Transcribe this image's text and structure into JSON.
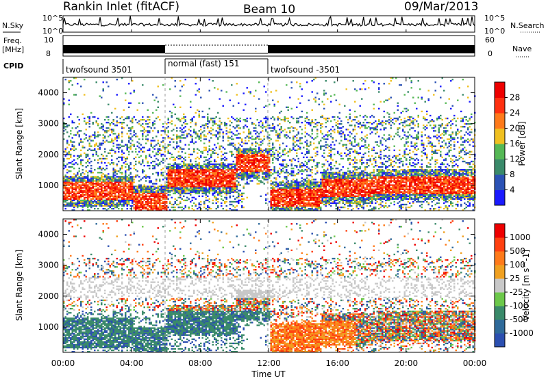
{
  "header": {
    "station": "Rankin Inlet (fitACF)",
    "beam": "Beam 10",
    "date": "09/Mar/2013"
  },
  "top_panels": {
    "nsky_label": "N.Sky",
    "nsky_ticks": [
      "10^5",
      "10^0"
    ],
    "nsearch_label": "N.Search",
    "nsearch_ticks": [
      "10^5",
      "10^0"
    ],
    "freq_label": "Freq.",
    "freq_unit": "[MHz]",
    "freq_ticks": [
      "10",
      "8"
    ],
    "nave_label": "Nave",
    "nave_ticks": [
      "60",
      "0"
    ],
    "cpid_label": "CPID",
    "cpid_segments": [
      "twofsound 3501",
      "normal (fast) 151",
      "twofsound -3501"
    ]
  },
  "colors": {
    "power_scale": [
      "#1a1aff",
      "#2b52b5",
      "#3a8a6a",
      "#55b855",
      "#f0c020",
      "#ff7a1a",
      "#ff3010",
      "#ee0000"
    ],
    "velocity_scale": [
      "#2b4fb0",
      "#2f6a9a",
      "#3a8a6a",
      "#6cc84a",
      "#c8c8c8",
      "#f0a020",
      "#ff7a1a",
      "#ff4010",
      "#ee0000"
    ]
  },
  "chart_data": [
    {
      "type": "heatmap",
      "title": "Power",
      "xlabel": "",
      "ylabel": "Slant Range [km]",
      "xlim": [
        "00:00",
        "24:00"
      ],
      "ylim": [
        180,
        4500
      ],
      "x_ticks": [
        "00:00",
        "04:00",
        "08:00",
        "12:00",
        "16:00",
        "20:00",
        "00:00"
      ],
      "y_ticks": [
        "1000",
        "2000",
        "3000",
        "4000"
      ],
      "colorbar": {
        "label": "Power [dB]",
        "ticks": [
          "28",
          "24",
          "20",
          "16",
          "12",
          "8",
          "4"
        ],
        "range": [
          0,
          30
        ]
      }
    },
    {
      "type": "heatmap",
      "title": "Velocity",
      "xlabel": "Time UT",
      "ylabel": "Slant Range [km]",
      "xlim": [
        "00:00",
        "24:00"
      ],
      "ylim": [
        180,
        4500
      ],
      "x_ticks": [
        "00:00",
        "04:00",
        "08:00",
        "12:00",
        "16:00",
        "20:00",
        "00:00"
      ],
      "y_ticks": [
        "1000",
        "2000",
        "3000",
        "4000"
      ],
      "colorbar": {
        "label": "Velocity [m s^-1]",
        "ticks": [
          "1000",
          "500",
          "100",
          "25",
          "-25",
          "-100",
          "-500",
          "-1000"
        ]
      }
    }
  ]
}
